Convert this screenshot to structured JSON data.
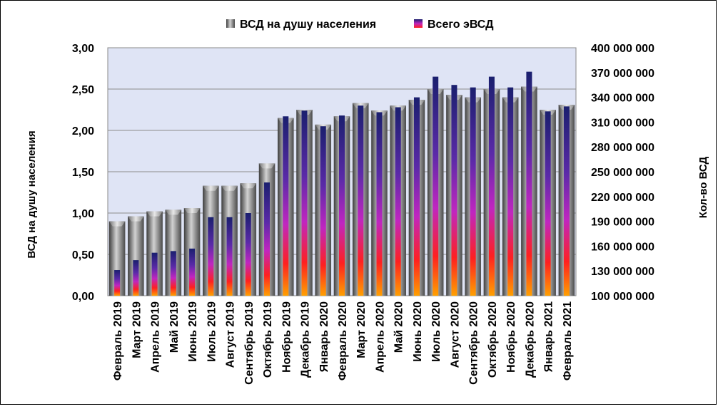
{
  "chart_data": {
    "type": "bar",
    "categories": [
      "Февраль 2019",
      "Март 2019",
      "Апрель 2019",
      "Май 2019",
      "Июнь 2019",
      "Июль 2019",
      "Август 2019",
      "Сентябрь 2019",
      "Октябрь 2019",
      "Ноябрь 2019",
      "Декабрь 2019",
      "Январь 2020",
      "Февраль 2020",
      "Март 2020",
      "Апрель 2020",
      "Май 2020",
      "Июнь 2020",
      "Июль 2020",
      "Август 2020",
      "Сентябрь 2020",
      "Октябрь 2020",
      "Ноябрь 2020",
      "Декабрь 2020",
      "Январь 2021",
      "Февраль 2021"
    ],
    "series": [
      {
        "name": "ВСД на душу населения",
        "axis": "left",
        "values": [
          0.9,
          0.96,
          1.02,
          1.04,
          1.06,
          1.33,
          1.33,
          1.36,
          1.6,
          2.15,
          2.25,
          2.07,
          2.17,
          2.33,
          2.24,
          2.3,
          2.37,
          2.5,
          2.43,
          2.4,
          2.5,
          2.4,
          2.53,
          2.25,
          2.31
        ]
      },
      {
        "name": "Всего эВСД",
        "axis": "right",
        "values": [
          131000000,
          143000000,
          152000000,
          154000000,
          157000000,
          195000000,
          195000000,
          200000000,
          237000000,
          317000000,
          324000000,
          305000000,
          318000000,
          330000000,
          322000000,
          328000000,
          340000000,
          365000000,
          355000000,
          352000000,
          365000000,
          352000000,
          371000000,
          323000000,
          329000000
        ]
      }
    ],
    "ylabel": "ВСД на душу населения",
    "y2label": "Кол-во ВСД",
    "ylim": [
      0,
      3
    ],
    "y2lim": [
      100000000,
      400000000
    ],
    "yticks": [
      "0,00",
      "0,50",
      "1,00",
      "1,50",
      "2,00",
      "2,50",
      "3,00"
    ],
    "y2ticks": [
      "100 000 000",
      "130 000 000",
      "160 000 000",
      "190 000 000",
      "220 000 000",
      "250 000 000",
      "280 000 000",
      "310 000 000",
      "340 000 000",
      "370 000 000",
      "400 000 000"
    ],
    "legend_position": "top-center",
    "grid": true,
    "colors": {
      "plot_background": "#dfe4f5",
      "gridline": "#8c8c8c",
      "series1_light": "#c8c8c8",
      "series1_dark": "#4a4a4a",
      "series2_top": "#1a1f6e",
      "series2_mid": "#c026c0",
      "series2_low": "#ff2020",
      "series2_bottom": "#ffa000"
    }
  }
}
